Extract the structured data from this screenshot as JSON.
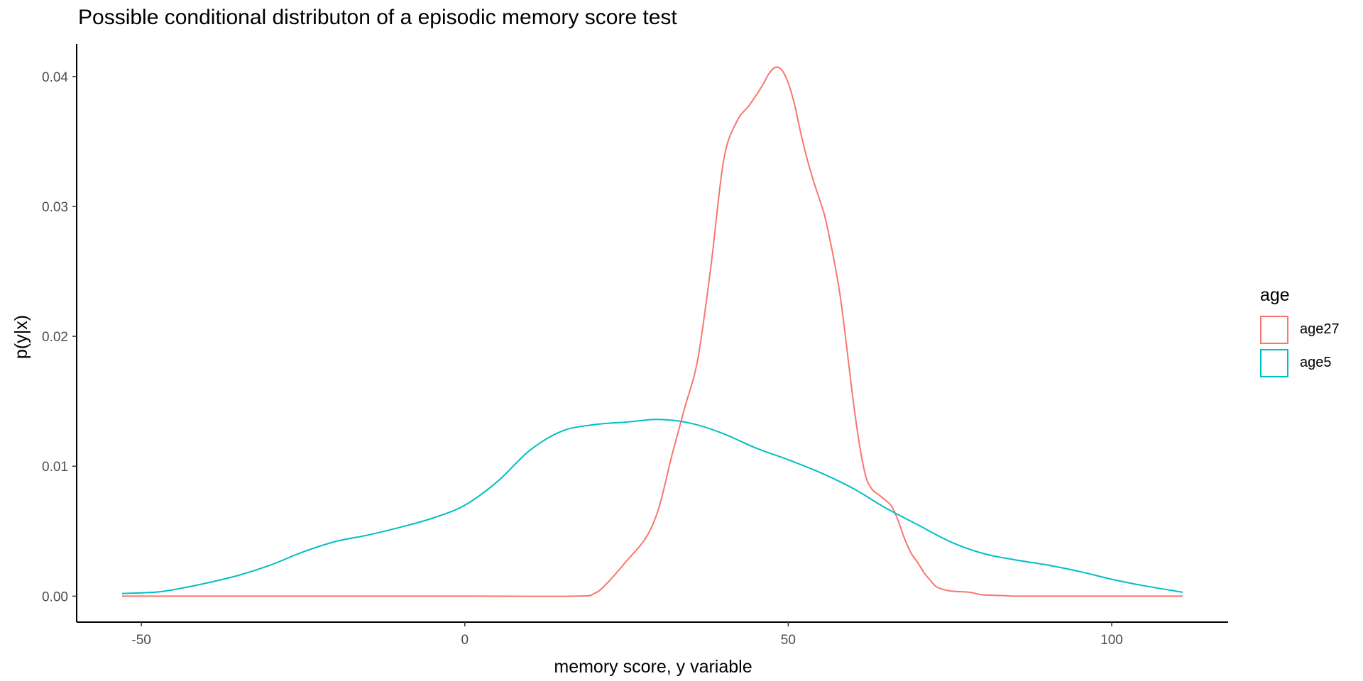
{
  "chart_data": {
    "type": "line",
    "title": "Possible conditional distributon of a episodic memory score test",
    "xlabel": "memory score, y variable",
    "ylabel": "p(y|x)",
    "xlim": [
      -60,
      118
    ],
    "ylim": [
      -0.002,
      0.0425
    ],
    "x_ticks": [
      -50,
      0,
      50,
      100
    ],
    "y_ticks": [
      0.0,
      0.01,
      0.02,
      0.03,
      0.04
    ],
    "x_tick_labels": [
      "-50",
      "0",
      "50",
      "100"
    ],
    "y_tick_labels": [
      "0.00",
      "0.01",
      "0.02",
      "0.03",
      "0.04"
    ],
    "grid": false,
    "legend": {
      "title": "age",
      "position": "right"
    },
    "series": [
      {
        "name": "age27",
        "color": "#F8766D",
        "x": [
          -53,
          0,
          17,
          20,
          22,
          25,
          28,
          30,
          32,
          34,
          36,
          38,
          40,
          42,
          44,
          46,
          47,
          48,
          49,
          50,
          51,
          52,
          53,
          54,
          55,
          56,
          58,
          60,
          61,
          62,
          63,
          64,
          65,
          66,
          67,
          68,
          69,
          70,
          71,
          72,
          73,
          75,
          78,
          80,
          83,
          85,
          90,
          100,
          111
        ],
        "y": [
          0,
          0,
          0,
          0.0002,
          0.001,
          0.0027,
          0.0045,
          0.0068,
          0.0108,
          0.0145,
          0.0182,
          0.0252,
          0.0335,
          0.0365,
          0.0378,
          0.0393,
          0.0402,
          0.0407,
          0.0405,
          0.0395,
          0.0378,
          0.0355,
          0.0335,
          0.0318,
          0.0303,
          0.0285,
          0.0232,
          0.0152,
          0.0117,
          0.0092,
          0.0082,
          0.0078,
          0.0074,
          0.0069,
          0.0058,
          0.0044,
          0.0033,
          0.0026,
          0.0018,
          0.0012,
          0.0007,
          0.0004,
          0.0003,
          0.0001,
          5e-05,
          0,
          0,
          0,
          0
        ]
      },
      {
        "name": "age5",
        "color": "#00BFC4",
        "x": [
          -53,
          -48,
          -45,
          -40,
          -35,
          -30,
          -25,
          -20,
          -15,
          -10,
          -5,
          0,
          5,
          10,
          15,
          20,
          25,
          30,
          35,
          40,
          45,
          50,
          55,
          60,
          65,
          70,
          75,
          80,
          85,
          90,
          95,
          100,
          105,
          111
        ],
        "y": [
          0.0002,
          0.0003,
          0.0005,
          0.001,
          0.0016,
          0.0024,
          0.0034,
          0.0042,
          0.0047,
          0.0053,
          0.006,
          0.007,
          0.0088,
          0.0112,
          0.0127,
          0.0132,
          0.0134,
          0.0136,
          0.0133,
          0.0125,
          0.0114,
          0.0105,
          0.0095,
          0.0083,
          0.0068,
          0.0055,
          0.0042,
          0.0033,
          0.0028,
          0.0024,
          0.0019,
          0.0013,
          0.0008,
          0.0003
        ]
      }
    ]
  }
}
